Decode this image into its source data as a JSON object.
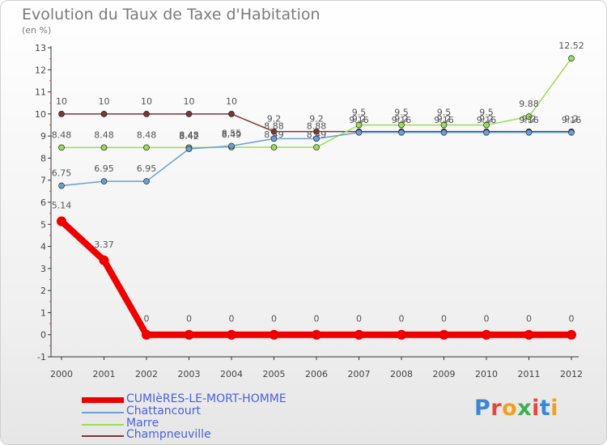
{
  "chart_data": {
    "type": "line",
    "title": "Evolution du Taux de Taxe d'Habitation",
    "subtitle": "(en %)",
    "xlabel": "",
    "ylabel": "",
    "categories": [
      "2000",
      "2001",
      "2002",
      "2003",
      "2004",
      "2005",
      "2006",
      "2007",
      "2008",
      "2009",
      "2010",
      "2011",
      "2012"
    ],
    "ylim": [
      -1,
      13
    ],
    "yticks": [
      "-1",
      "0",
      "1",
      "2",
      "3",
      "4",
      "5",
      "6",
      "7",
      "8",
      "9",
      "10",
      "11",
      "12",
      "13"
    ],
    "grid": false,
    "legend_position": "bottom-left",
    "series": [
      {
        "name": "CUMIèRES-LE-MORT-HOMME",
        "color": "#ee0000",
        "values": [
          5.14,
          3.37,
          0,
          0,
          0,
          0,
          0,
          0,
          0,
          0,
          0,
          0,
          0
        ],
        "labels": [
          "5.14",
          "3.37",
          "0",
          "0",
          "0",
          "0",
          "0",
          "0",
          "0",
          "0",
          "0",
          "0",
          "0"
        ]
      },
      {
        "name": "Chattancourt",
        "color": "#6a9fd4",
        "values": [
          6.75,
          6.95,
          6.95,
          8.42,
          8.55,
          8.88,
          8.88,
          9.16,
          9.16,
          9.16,
          9.16,
          9.16,
          9.16
        ],
        "labels": [
          "6.75",
          "6.95",
          "6.95",
          "8.42",
          "8.55",
          "8.88",
          "8.88",
          "9.16",
          "9.16",
          "9.16",
          "9.16",
          "9.16",
          "9.16"
        ]
      },
      {
        "name": "Marre",
        "color": "#99dd55",
        "values": [
          8.48,
          8.48,
          8.48,
          8.48,
          8.49,
          8.49,
          8.49,
          9.5,
          9.5,
          9.5,
          9.5,
          9.88,
          12.52
        ],
        "labels": [
          "8.48",
          "8.48",
          "8.48",
          "8.48",
          "8.49",
          "8.49",
          "8.49",
          "9.5",
          "9.5",
          "9.5",
          "9.5",
          "9.88",
          "12.52"
        ]
      },
      {
        "name": "Champneuville",
        "color": "#7a3636",
        "values": [
          10,
          10,
          10,
          10,
          10,
          9.2,
          9.2,
          9.2,
          9.2,
          9.2,
          9.2,
          9.2,
          9.2
        ],
        "labels": [
          "10",
          "10",
          "10",
          "10",
          "10",
          "9.2",
          "9.2",
          "9.2",
          "9.2",
          "9.2",
          "9.2",
          "9.2",
          "9.2"
        ]
      }
    ]
  },
  "logo": {
    "text": "Proxiti",
    "letter_colors": [
      "#3a86d8",
      "#e8463a",
      "#f0a020",
      "#3fae4f",
      "#e8463a",
      "#3a86d8",
      "#f0a020"
    ]
  }
}
